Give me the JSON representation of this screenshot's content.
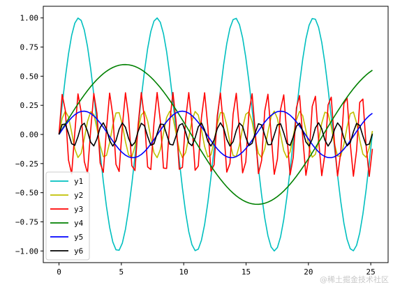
{
  "chart_data": {
    "type": "line",
    "title": "",
    "xlabel": "",
    "ylabel": "",
    "xlim": [
      -1.26,
      26.39
    ],
    "ylim": [
      -1.1,
      1.1
    ],
    "xticks": [
      0,
      5,
      10,
      15,
      20,
      25
    ],
    "xtick_labels": [
      "0",
      "5",
      "10",
      "15",
      "20",
      "25"
    ],
    "yticks": [
      -1.0,
      -0.75,
      -0.5,
      -0.25,
      0.0,
      0.25,
      0.5,
      0.75,
      1.0
    ],
    "ytick_labels": [
      "−1.00",
      "−0.75",
      "−0.50",
      "−0.25",
      "0.00",
      "0.25",
      "0.50",
      "0.75",
      "1.00"
    ],
    "grid": false,
    "legend": "lower-left",
    "x_range": [
      0,
      25.13
    ],
    "num_points": 100,
    "series": [
      {
        "name": "y1",
        "color": "#00bfbf",
        "amplitude": 1.0,
        "period": 6.28
      },
      {
        "name": "y2",
        "color": "#bfbf00",
        "amplitude": 0.2,
        "period": 2.09
      },
      {
        "name": "y3",
        "color": "#ff0000",
        "amplitude": 0.36,
        "period": 1.26
      },
      {
        "name": "y4",
        "color": "#008000",
        "amplitude": 0.6,
        "period": 21.2
      },
      {
        "name": "y5",
        "color": "#0000ff",
        "amplitude": 0.2,
        "period": 7.9
      },
      {
        "name": "y6",
        "color": "#000000",
        "amplitude": 0.1,
        "period": 1.57
      }
    ]
  },
  "watermark": "@稀土掘金技术社区"
}
